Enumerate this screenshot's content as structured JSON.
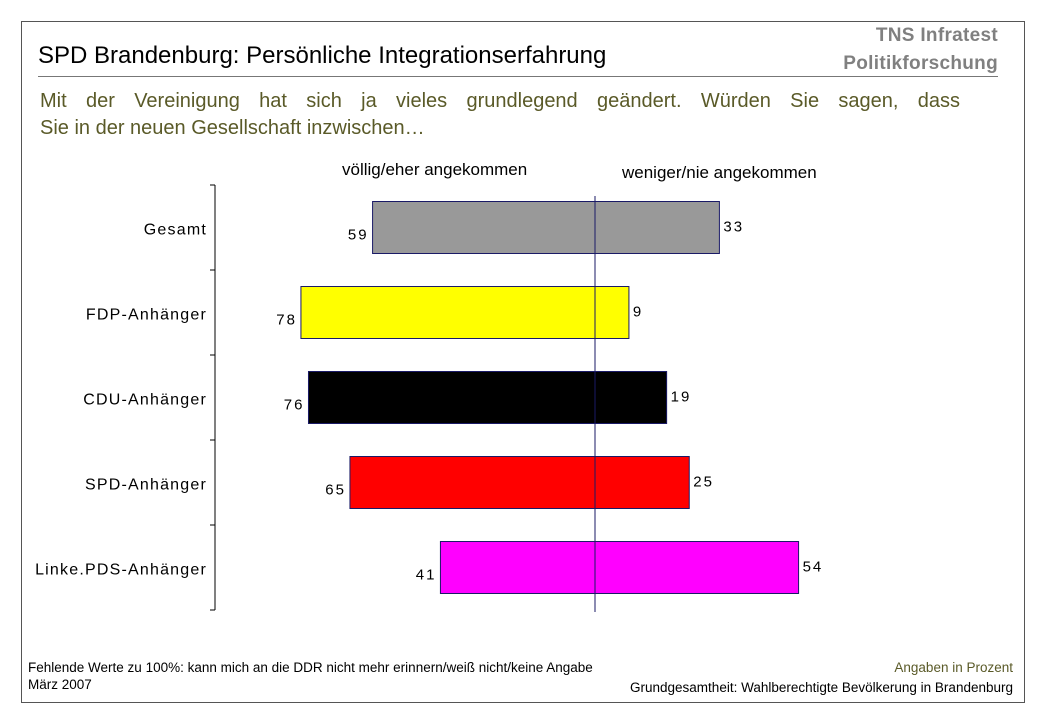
{
  "brand": {
    "line1": "TNS Infratest",
    "line2": "Politikforschung",
    "color": "#808080"
  },
  "header": {
    "title": "SPD Brandenburg: Persönliche Integrationserfahrung"
  },
  "question": {
    "line1": "Mit der Vereinigung hat sich ja vieles grundlegend geändert. Würden Sie sagen, dass",
    "line2": "Sie in der neuen Gesellschaft inzwischen…",
    "color": "#5a5a28"
  },
  "chart_data": {
    "type": "bar",
    "orientation": "horizontal-diverging",
    "categories": [
      "Gesamt",
      "FDP-Anhänger",
      "CDU-Anhänger",
      "SPD-Anhänger",
      "Linke.PDS-Anhänger"
    ],
    "series": [
      {
        "name": "völlig/eher angekommen",
        "values": [
          59,
          78,
          76,
          65,
          41
        ]
      },
      {
        "name": "weniger/nie angekommen",
        "values": [
          33,
          9,
          19,
          25,
          54
        ]
      }
    ],
    "bar_colors": [
      "#999999",
      "#ffff00",
      "#000000",
      "#ff0000",
      "#ff00ff"
    ],
    "xlim": [
      -80,
      80
    ],
    "grid": false
  },
  "footer": {
    "note": "Fehlende Werte zu 100%: kann mich an die DDR nicht mehr erinnern/weiß nicht/keine Angabe",
    "date": "März 2007",
    "unit": "Angaben in Prozent",
    "population": "Grundgesamtheit: Wahlberechtigte Bevölkerung in Brandenburg",
    "unit_color": "#5a5a28"
  }
}
